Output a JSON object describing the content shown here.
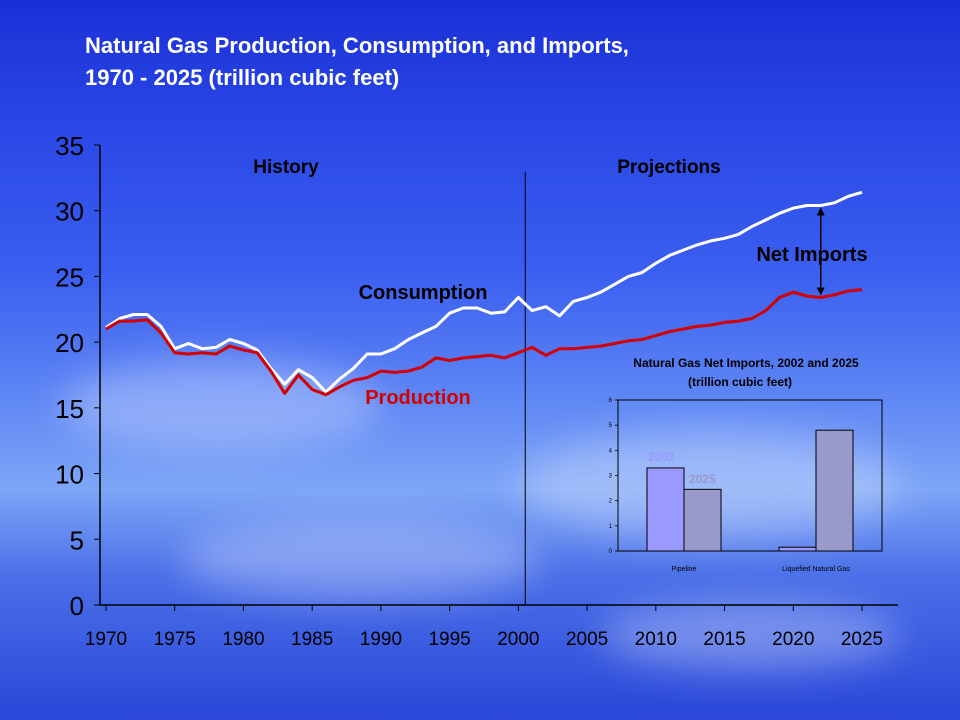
{
  "title_line1": "Natural Gas Production, Consumption, and Imports,",
  "title_line2": "1970 - 2025 (trillion cubic feet)",
  "chart_data": [
    {
      "type": "line",
      "ylim": [
        0,
        35
      ],
      "xlim": [
        1970,
        2025
      ],
      "yticks": [
        0,
        5,
        10,
        15,
        20,
        25,
        30,
        35
      ],
      "xticks": [
        1970,
        1975,
        1980,
        1985,
        1990,
        1995,
        2000,
        2005,
        2010,
        2015,
        2020,
        2025
      ],
      "region_labels": {
        "history": "History",
        "projections": "Projections"
      },
      "divider_x": 2000.5,
      "annotation": "Net Imports",
      "series": [
        {
          "name": "Consumption",
          "color": "#ffffff",
          "x": [
            1970,
            1971,
            1972,
            1973,
            1974,
            1975,
            1976,
            1977,
            1978,
            1979,
            1980,
            1981,
            1982,
            1983,
            1984,
            1985,
            1986,
            1987,
            1988,
            1989,
            1990,
            1991,
            1992,
            1993,
            1994,
            1995,
            1996,
            1997,
            1998,
            1999,
            2000,
            2001,
            2002,
            2003,
            2004,
            2005,
            2006,
            2007,
            2008,
            2009,
            2010,
            2011,
            2012,
            2013,
            2014,
            2015,
            2016,
            2017,
            2018,
            2019,
            2020,
            2021,
            2022,
            2023,
            2024,
            2025
          ],
          "values": [
            21.1,
            21.8,
            22.1,
            22.1,
            21.2,
            19.5,
            19.9,
            19.5,
            19.6,
            20.2,
            19.9,
            19.4,
            18.0,
            16.8,
            17.9,
            17.3,
            16.2,
            17.2,
            18.0,
            19.1,
            19.1,
            19.5,
            20.2,
            20.7,
            21.2,
            22.2,
            22.6,
            22.6,
            22.2,
            22.3,
            23.4,
            22.4,
            22.7,
            22.0,
            23.1,
            23.4,
            23.8,
            24.4,
            25.0,
            25.3,
            26.0,
            26.6,
            27.0,
            27.4,
            27.7,
            27.9,
            28.2,
            28.8,
            29.3,
            29.8,
            30.2,
            30.4,
            30.4,
            30.6,
            31.1,
            31.4
          ]
        },
        {
          "name": "Production",
          "color": "#d40000",
          "x": [
            1970,
            1971,
            1972,
            1973,
            1974,
            1975,
            1976,
            1977,
            1978,
            1979,
            1980,
            1981,
            1982,
            1983,
            1984,
            1985,
            1986,
            1987,
            1988,
            1989,
            1990,
            1991,
            1992,
            1993,
            1994,
            1995,
            1996,
            1997,
            1998,
            1999,
            2000,
            2001,
            2002,
            2003,
            2004,
            2005,
            2006,
            2007,
            2008,
            2009,
            2010,
            2011,
            2012,
            2013,
            2014,
            2015,
            2016,
            2017,
            2018,
            2019,
            2020,
            2021,
            2022,
            2023,
            2024,
            2025
          ],
          "values": [
            21.0,
            21.6,
            21.6,
            21.7,
            20.7,
            19.2,
            19.1,
            19.2,
            19.1,
            19.7,
            19.4,
            19.2,
            17.8,
            16.1,
            17.5,
            16.4,
            16.0,
            16.6,
            17.1,
            17.3,
            17.8,
            17.7,
            17.8,
            18.1,
            18.8,
            18.6,
            18.8,
            18.9,
            19.0,
            18.8,
            19.2,
            19.6,
            19.0,
            19.5,
            19.5,
            19.6,
            19.7,
            19.9,
            20.1,
            20.2,
            20.5,
            20.8,
            21.0,
            21.2,
            21.3,
            21.5,
            21.6,
            21.8,
            22.4,
            23.4,
            23.8,
            23.5,
            23.4,
            23.6,
            23.9,
            24.0
          ]
        }
      ]
    },
    {
      "type": "bar",
      "title_line1": "Natural Gas Net Imports, 2002 and 2025",
      "title_line2": "(trillion cubic feet)",
      "categories": [
        "Pipeline",
        "Liquefied Natural Gas"
      ],
      "ylim": [
        0,
        6
      ],
      "yticks": [
        0,
        1,
        2,
        3,
        4,
        5,
        6
      ],
      "series": [
        {
          "name": "2002",
          "color": "#9999ff",
          "values": [
            3.3,
            0.15
          ]
        },
        {
          "name": "2025",
          "color": "#9999cc",
          "values": [
            2.45,
            4.8
          ]
        }
      ]
    }
  ]
}
